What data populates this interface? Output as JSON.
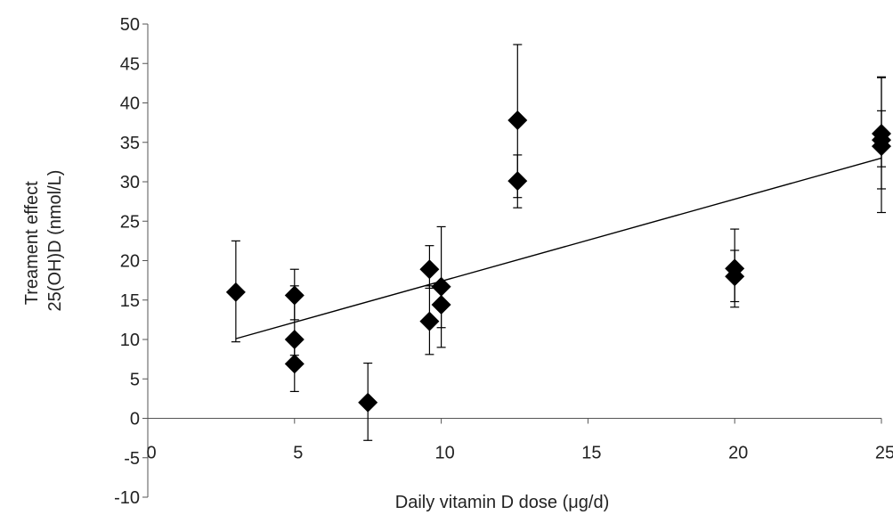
{
  "chart_data": {
    "type": "scatter",
    "title": "",
    "xlabel": "Daily vitamin D dose (μg/d)",
    "ylabel_lines": [
      "Treament effect",
      "25(OH)D (nmol/L)"
    ],
    "xlim": [
      0,
      25
    ],
    "ylim": [
      -10,
      50
    ],
    "xticks": [
      "0",
      "5",
      "10",
      "15",
      "20",
      "25"
    ],
    "yticks": [
      "-10",
      "-5",
      "0",
      "5",
      "10",
      "15",
      "20",
      "25",
      "30",
      "35",
      "40",
      "45",
      "50"
    ],
    "grid": false,
    "marker": "diamond",
    "colors": {
      "marker": "#000000",
      "line": "#000000",
      "axis": "#555555"
    },
    "points": [
      {
        "x": 3,
        "y": 16.0,
        "err_low": 9.7,
        "err_high": 22.5
      },
      {
        "x": 5,
        "y": 15.6,
        "err_low": 12.5,
        "err_high": 18.9
      },
      {
        "x": 5,
        "y": 10.0,
        "err_low": 8.0,
        "err_high": 16.8
      },
      {
        "x": 5,
        "y": 6.9,
        "err_low": 3.4,
        "err_high": 9.5
      },
      {
        "x": 7.5,
        "y": 2.0,
        "err_low": -2.8,
        "err_high": 7.0
      },
      {
        "x": 9.6,
        "y": 18.9,
        "err_low": 16.5,
        "err_high": 21.9
      },
      {
        "x": 9.6,
        "y": 12.3,
        "err_low": 8.1,
        "err_high": 16.8
      },
      {
        "x": 10,
        "y": 16.7,
        "err_low": 9.0,
        "err_high": 24.3
      },
      {
        "x": 10,
        "y": 14.4,
        "err_low": 11.5,
        "err_high": 17.3
      },
      {
        "x": 12.6,
        "y": 37.8,
        "err_low": 28.0,
        "err_high": 47.4
      },
      {
        "x": 12.6,
        "y": 30.1,
        "err_low": 26.7,
        "err_high": 33.4
      },
      {
        "x": 20,
        "y": 19.0,
        "err_low": 14.1,
        "err_high": 24.0
      },
      {
        "x": 20,
        "y": 18.0,
        "err_low": 14.8,
        "err_high": 21.3
      },
      {
        "x": 25,
        "y": 36.1,
        "err_low": 29.1,
        "err_high": 43.3
      },
      {
        "x": 25,
        "y": 35.3,
        "err_low": 31.9,
        "err_high": 39.0
      },
      {
        "x": 25,
        "y": 34.5,
        "err_low": 26.1,
        "err_high": 43.2
      }
    ],
    "trendline": {
      "x": [
        3,
        25
      ],
      "y": [
        10.1,
        33.0
      ]
    }
  }
}
